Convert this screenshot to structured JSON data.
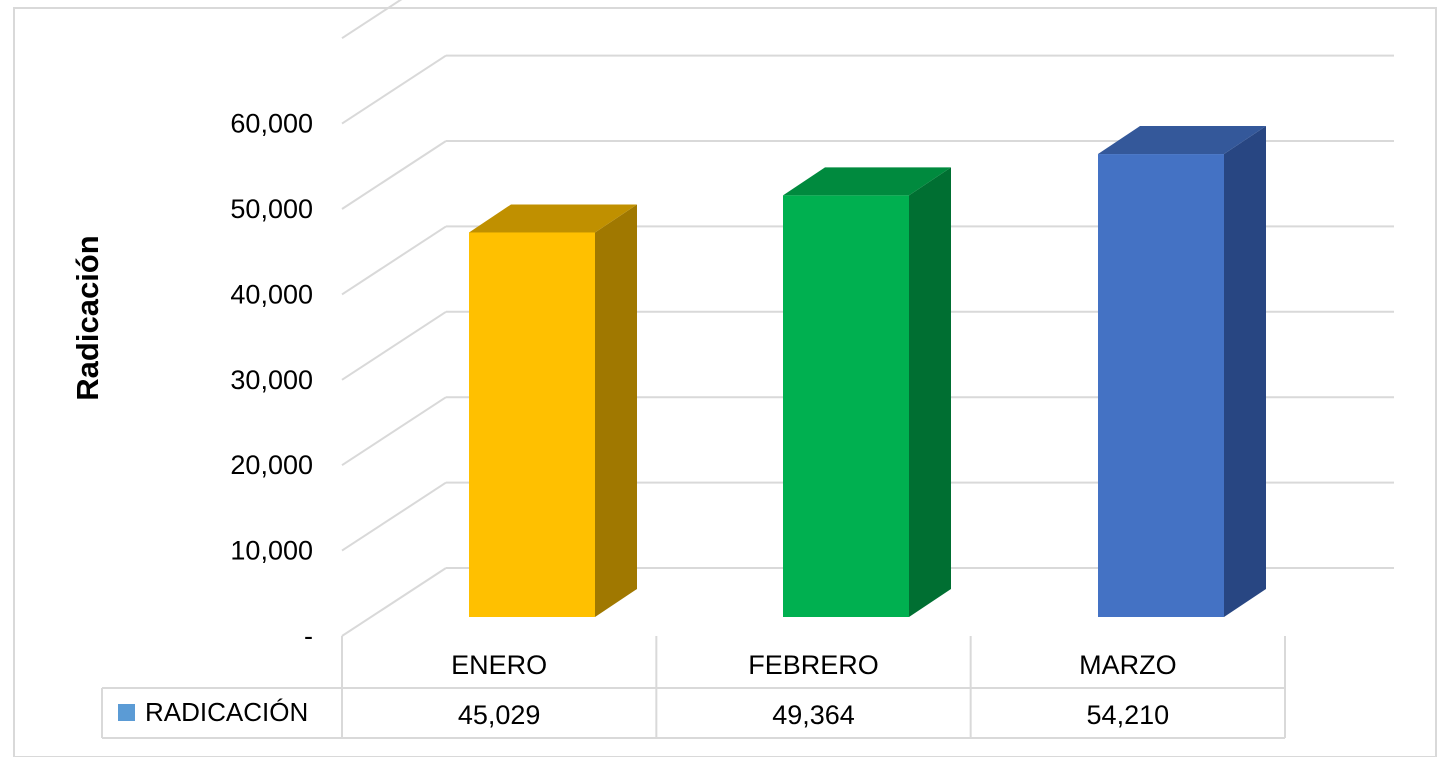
{
  "chart_data": {
    "type": "bar",
    "subtype": "3d-column-with-data-table",
    "ylabel": "Radicación",
    "categories": [
      "ENERO",
      "FEBRERO",
      "MARZO"
    ],
    "series": [
      {
        "name": "RADICACIÓN",
        "values": [
          45029,
          49364,
          54210
        ],
        "legend_color": "#5b9bd5"
      }
    ],
    "value_labels": [
      "45,029",
      "49,364",
      "54,210"
    ],
    "bar_colors": [
      {
        "front": "#ffc000",
        "top": "#c09000",
        "side": "#a07800"
      },
      {
        "front": "#00b050",
        "top": "#008a3e",
        "side": "#006f32"
      },
      {
        "front": "#4472c4",
        "top": "#34589a",
        "side": "#284682"
      }
    ],
    "ylim": [
      0,
      70000
    ],
    "yticks": [
      0,
      10000,
      20000,
      30000,
      40000,
      50000,
      60000
    ],
    "ytick_labels": [
      "-",
      "10,000",
      "20,000",
      "30,000",
      "40,000",
      "50,000",
      "60,000"
    ],
    "grid": true,
    "legend": "data-table"
  }
}
